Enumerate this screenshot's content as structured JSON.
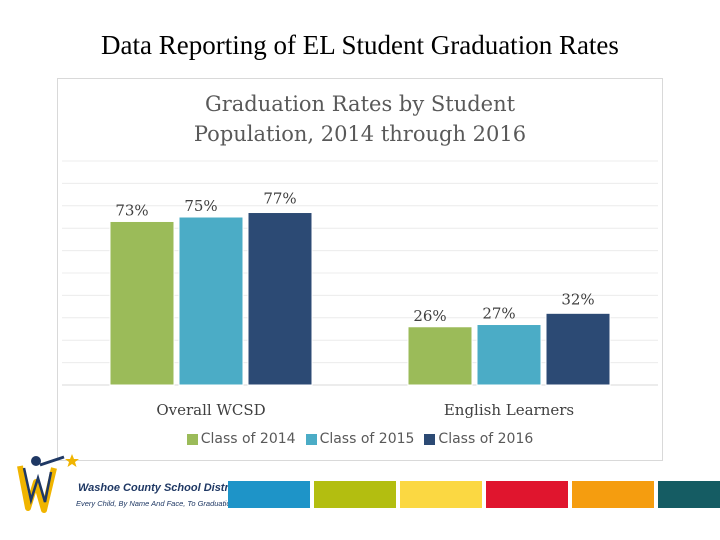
{
  "slide": {
    "title": "Data Reporting of EL Student Graduation Rates"
  },
  "chart_data": {
    "type": "bar",
    "title_lines": [
      "Graduation Rates by Student",
      "Population, 2014 through 2016"
    ],
    "categories": [
      "Overall WCSD",
      "English Learners"
    ],
    "series": [
      {
        "name": "Class of 2014",
        "values": [
          73,
          26
        ],
        "labels": [
          "73%",
          "26%"
        ],
        "color": "#9bbb59"
      },
      {
        "name": "Class of 2015",
        "values": [
          75,
          27
        ],
        "labels": [
          "75%",
          "27%"
        ],
        "color": "#4bacc6"
      },
      {
        "name": "Class of 2016",
        "values": [
          77,
          32
        ],
        "labels": [
          "77%",
          "32%"
        ],
        "color": "#2c4a74"
      }
    ],
    "ylim": [
      0,
      100
    ],
    "grid": true,
    "legend_position": "bottom"
  },
  "footer": {
    "logo_name": "Washoe County School District",
    "logo_tagline": "Every Child, By Name And Face, To Graduation",
    "stripe_colors": [
      "#1e94c8",
      "#b3be10",
      "#fbd842",
      "#e0152e",
      "#f59d0f",
      "#155c63"
    ]
  }
}
